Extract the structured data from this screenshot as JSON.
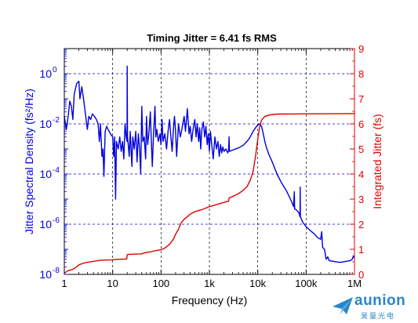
{
  "chart_data": {
    "type": "line",
    "title": "Timing Jitter =  6.41 fs RMS",
    "xlabel": "Frequency (Hz)",
    "ylabel_left": "Jitter Spectral Density (fs²/Hz)",
    "ylabel_right": "Integrated Jitter (fs)",
    "x_scale": "log",
    "xlim": [
      1,
      1000000
    ],
    "x_ticks": [
      {
        "value": 1,
        "label": "1"
      },
      {
        "value": 10,
        "label": "10"
      },
      {
        "value": 100,
        "label": "100"
      },
      {
        "value": 1000,
        "label": "1k"
      },
      {
        "value": 10000,
        "label": "10k"
      },
      {
        "value": 100000,
        "label": "100k"
      },
      {
        "value": 1000000,
        "label": "1M"
      }
    ],
    "y_left_scale": "log",
    "y_left_lim": [
      1e-08,
      10
    ],
    "y_left_ticks": [
      {
        "value": 1,
        "mantissa": "10",
        "exp": "0"
      },
      {
        "value": 0.01,
        "mantissa": "10",
        "exp": "-2"
      },
      {
        "value": 0.0001,
        "mantissa": "10",
        "exp": "-4"
      },
      {
        "value": 1e-06,
        "mantissa": "10",
        "exp": "-6"
      },
      {
        "value": 1e-08,
        "mantissa": "10",
        "exp": "-8"
      }
    ],
    "y_right_lim": [
      0,
      9
    ],
    "y_right_ticks": [
      "0",
      "1",
      "2",
      "3",
      "4",
      "5",
      "6",
      "7",
      "8",
      "9"
    ],
    "grid": true,
    "series": [
      {
        "axis": "left",
        "color": "#0000dd",
        "points": [
          [
            1,
            0.02
          ],
          [
            1.1,
            0.006
          ],
          [
            1.2,
            0.02
          ],
          [
            1.3,
            0.08
          ],
          [
            1.4,
            0.05
          ],
          [
            1.5,
            0.015
          ],
          [
            1.6,
            0.15
          ],
          [
            1.8,
            0.4
          ],
          [
            2,
            0.5
          ],
          [
            2.1,
            0.1
          ],
          [
            2.3,
            0.3
          ],
          [
            2.5,
            0.1
          ],
          [
            2.7,
            0.03
          ],
          [
            3,
            0.006
          ],
          [
            3.2,
            0.02
          ],
          [
            3.5,
            0.015
          ],
          [
            3.8,
            0.025
          ],
          [
            4.2,
            0.02
          ],
          [
            4.6,
            0.015
          ],
          [
            5,
            0.01
          ],
          [
            5.3,
            0.002
          ],
          [
            5.6,
            0.01
          ],
          [
            6,
            0.0005
          ],
          [
            6.3,
            0.001
          ],
          [
            6.6,
            8e-05
          ],
          [
            7,
            0.005
          ],
          [
            7.5,
            0.008
          ],
          [
            8,
            0.006
          ],
          [
            8.5,
            0.005
          ],
          [
            9,
            0.004
          ],
          [
            10,
            0.003
          ],
          [
            10.5,
            0.0005
          ],
          [
            11,
            0.003
          ],
          [
            11.5,
            1e-05
          ],
          [
            12,
            0.002
          ],
          [
            13,
            0.001
          ],
          [
            14,
            0.003
          ],
          [
            15,
            0.0008
          ],
          [
            16,
            0.002
          ],
          [
            17,
            0.0004
          ],
          [
            18,
            0.01
          ],
          [
            19,
            0.003
          ],
          [
            19.8,
            0.002
          ],
          [
            20,
            2
          ],
          [
            20.3,
            0.003
          ],
          [
            21,
            0.0015
          ],
          [
            22,
            0.0005
          ],
          [
            23,
            0.005
          ],
          [
            24,
            0.001
          ],
          [
            25,
            0.0002
          ],
          [
            26,
            0.003
          ],
          [
            28,
            0.001
          ],
          [
            30,
            0.005
          ],
          [
            32,
            0.0003
          ],
          [
            34,
            0.004
          ],
          [
            36,
            0.001
          ],
          [
            38,
            0.0001
          ],
          [
            40,
            0.05
          ],
          [
            42,
            0.002
          ],
          [
            45,
            0.003
          ],
          [
            48,
            0.0004
          ],
          [
            50,
            0.02
          ],
          [
            53,
            0.0015
          ],
          [
            56,
            0.004
          ],
          [
            60,
            0.03
          ],
          [
            63,
            0.002
          ],
          [
            66,
            0.0002
          ],
          [
            70,
            0.004
          ],
          [
            75,
            0.05
          ],
          [
            78,
            0.003
          ],
          [
            82,
            0.006
          ],
          [
            88,
            0.002
          ],
          [
            95,
            0.004
          ],
          [
            100,
            0.0015
          ],
          [
            105,
            0.015
          ],
          [
            110,
            0.002
          ],
          [
            120,
            0.004
          ],
          [
            130,
            0.001
          ],
          [
            140,
            0.005
          ],
          [
            150,
            0.015
          ],
          [
            160,
            0.003
          ],
          [
            170,
            0.0008
          ],
          [
            180,
            0.006
          ],
          [
            190,
            0.02
          ],
          [
            200,
            0.005
          ],
          [
            210,
            0.0005
          ],
          [
            230,
            0.01
          ],
          [
            250,
            0.003
          ],
          [
            270,
            0.006
          ],
          [
            300,
            0.02
          ],
          [
            320,
            0.005
          ],
          [
            350,
            0.04
          ],
          [
            380,
            0.004
          ],
          [
            400,
            0.008
          ],
          [
            430,
            0.002
          ],
          [
            460,
            0.006
          ],
          [
            500,
            0.015
          ],
          [
            530,
            0.003
          ],
          [
            560,
            0.01
          ],
          [
            600,
            0.002
          ],
          [
            630,
            0.007
          ],
          [
            660,
            0.001
          ],
          [
            700,
            0.006
          ],
          [
            750,
            0.012
          ],
          [
            800,
            0.003
          ],
          [
            850,
            0.008
          ],
          [
            900,
            0.0015
          ],
          [
            950,
            0.004
          ],
          [
            1000,
            0.0008
          ],
          [
            1050,
            0.005
          ],
          [
            1100,
            0.002
          ],
          [
            1200,
            0.0004
          ],
          [
            1300,
            0.003
          ],
          [
            1400,
            0.001
          ],
          [
            1500,
            0.002
          ],
          [
            1600,
            0.0005
          ],
          [
            1700,
            0.0015
          ],
          [
            1800,
            0.0007
          ],
          [
            1900,
            0.0012
          ],
          [
            2000,
            0.0008
          ],
          [
            2200,
            0.001
          ],
          [
            2400,
            0.0007
          ],
          [
            2500,
            0.0009
          ],
          [
            2550,
            0.003
          ],
          [
            2600,
            0.0008
          ],
          [
            3000,
            0.0009
          ],
          [
            4000,
            0.0011
          ],
          [
            5000,
            0.0014
          ],
          [
            6000,
            0.002
          ],
          [
            7000,
            0.003
          ],
          [
            8000,
            0.005
          ],
          [
            9000,
            0.007
          ],
          [
            10000,
            0.009
          ],
          [
            11000,
            0.01
          ],
          [
            12000,
            0.008
          ],
          [
            13000,
            0.004
          ],
          [
            14000,
            0.002
          ],
          [
            15000,
            0.0012
          ],
          [
            17000,
            0.0006
          ],
          [
            20000,
            0.0003
          ],
          [
            25000,
            0.0001
          ],
          [
            30000,
            5e-05
          ],
          [
            40000,
            2e-05
          ],
          [
            50000,
            8e-06
          ],
          [
            55000,
            5e-06
          ],
          [
            57000,
            2e-05
          ],
          [
            58000,
            4e-06
          ],
          [
            60000,
            4e-06
          ],
          [
            70000,
            3e-06
          ],
          [
            75000,
            2e-06
          ],
          [
            75500,
            3e-05
          ],
          [
            76000,
            2e-06
          ],
          [
            85000,
            1.2e-06
          ],
          [
            100000,
            8e-07
          ],
          [
            130000,
            5e-07
          ],
          [
            150000,
            4e-07
          ],
          [
            170000,
            3e-07
          ],
          [
            200000,
            2.5e-07
          ],
          [
            210000,
            5e-07
          ],
          [
            220000,
            1.2e-07
          ],
          [
            240000,
            1e-07
          ],
          [
            260000,
            4e-08
          ],
          [
            280000,
            5e-08
          ],
          [
            300000,
            3.5e-08
          ],
          [
            500000,
            3e-08
          ],
          [
            800000,
            3.5e-08
          ],
          [
            900000,
            4e-08
          ],
          [
            950000,
            5.5e-08
          ],
          [
            1000000,
            4.5e-08
          ]
        ]
      },
      {
        "axis": "right",
        "color": "#dd0000",
        "points": [
          [
            1,
            0.05
          ],
          [
            1.2,
            0.15
          ],
          [
            1.5,
            0.2
          ],
          [
            1.8,
            0.3
          ],
          [
            2,
            0.38
          ],
          [
            2.5,
            0.45
          ],
          [
            3,
            0.48
          ],
          [
            4,
            0.52
          ],
          [
            5,
            0.55
          ],
          [
            6,
            0.57
          ],
          [
            10,
            0.58
          ],
          [
            12,
            0.6
          ],
          [
            18,
            0.61
          ],
          [
            19.5,
            0.62
          ],
          [
            20,
            0.78
          ],
          [
            21,
            0.8
          ],
          [
            40,
            0.82
          ],
          [
            45,
            0.86
          ],
          [
            60,
            0.9
          ],
          [
            80,
            0.95
          ],
          [
            100,
            0.98
          ],
          [
            120,
            1.05
          ],
          [
            150,
            1.2
          ],
          [
            180,
            1.4
          ],
          [
            200,
            1.6
          ],
          [
            230,
            1.8
          ],
          [
            260,
            2.05
          ],
          [
            300,
            2.2
          ],
          [
            350,
            2.3
          ],
          [
            400,
            2.4
          ],
          [
            500,
            2.5
          ],
          [
            700,
            2.58
          ],
          [
            1000,
            2.7
          ],
          [
            1500,
            2.8
          ],
          [
            2000,
            2.87
          ],
          [
            2500,
            2.92
          ],
          [
            2550,
            3.05
          ],
          [
            3000,
            3.1
          ],
          [
            4000,
            3.22
          ],
          [
            5000,
            3.35
          ],
          [
            6000,
            3.5
          ],
          [
            7000,
            3.75
          ],
          [
            8000,
            4.1
          ],
          [
            9000,
            4.7
          ],
          [
            10000,
            5.4
          ],
          [
            11000,
            5.9
          ],
          [
            12000,
            6.15
          ],
          [
            14000,
            6.3
          ],
          [
            17000,
            6.35
          ],
          [
            25000,
            6.39
          ],
          [
            100000,
            6.4
          ],
          [
            1000000,
            6.41
          ]
        ]
      }
    ]
  }
}
